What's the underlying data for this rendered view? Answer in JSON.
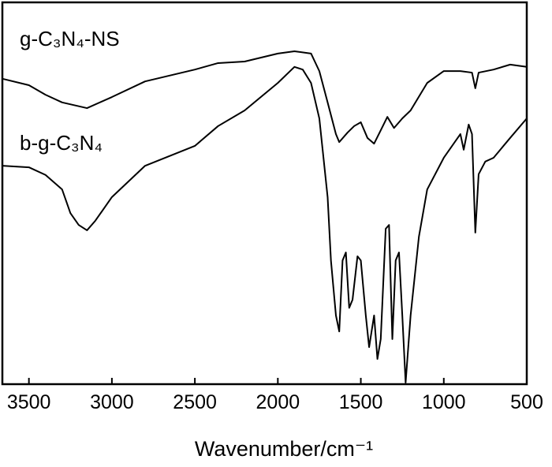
{
  "chart_data": {
    "type": "line",
    "xlabel": "Wavenumber/cm⁻¹",
    "xlim": [
      3660,
      500
    ],
    "xticks": [
      3500,
      3000,
      2500,
      2000,
      1500,
      1000,
      500
    ],
    "ylim": [
      0,
      100
    ],
    "series": [
      {
        "name": "g-C₃N₄-NS",
        "color": "#000000",
        "x": [
          3660,
          3500,
          3400,
          3300,
          3150,
          3000,
          2800,
          2500,
          2360,
          2200,
          2000,
          1900,
          1800,
          1750,
          1700,
          1650,
          1630,
          1580,
          1540,
          1500,
          1460,
          1420,
          1380,
          1340,
          1300,
          1250,
          1200,
          1100,
          1000,
          900,
          830,
          810,
          790,
          700,
          600,
          500
        ],
        "values": [
          80.0,
          78.3,
          75.8,
          73.8,
          72.3,
          75.2,
          79.3,
          82.4,
          84.1,
          84.5,
          86.6,
          87.2,
          86.6,
          82.0,
          73.8,
          65.5,
          63.4,
          65.9,
          67.6,
          68.6,
          64.5,
          63.0,
          66.5,
          70.0,
          67.1,
          69.6,
          71.7,
          78.9,
          82.0,
          82.0,
          81.6,
          77.5,
          81.6,
          82.4,
          83.7,
          83.1
        ]
      },
      {
        "name": "b-g-C₃N₄",
        "color": "#000000",
        "x": [
          3660,
          3500,
          3400,
          3300,
          3250,
          3200,
          3150,
          3100,
          3000,
          2800,
          2500,
          2360,
          2200,
          2000,
          1900,
          1850,
          1800,
          1750,
          1700,
          1680,
          1650,
          1630,
          1610,
          1590,
          1570,
          1550,
          1520,
          1500,
          1470,
          1450,
          1420,
          1400,
          1380,
          1350,
          1330,
          1310,
          1290,
          1270,
          1250,
          1230,
          1200,
          1150,
          1100,
          1000,
          900,
          880,
          850,
          830,
          810,
          790,
          750,
          700,
          600,
          500
        ],
        "values": [
          57.2,
          56.8,
          54.8,
          51.0,
          44.8,
          41.7,
          40.3,
          42.8,
          49.0,
          57.2,
          62.4,
          67.6,
          71.7,
          78.9,
          83.1,
          82.4,
          78.9,
          69.6,
          49.0,
          32.4,
          18.0,
          13.8,
          32.4,
          34.5,
          20.0,
          22.1,
          33.5,
          32.4,
          18.0,
          9.7,
          18.0,
          6.6,
          11.8,
          40.7,
          41.7,
          11.8,
          32.4,
          34.5,
          18.0,
          0.4,
          18.0,
          38.6,
          51.0,
          59.3,
          65.5,
          61.4,
          68.0,
          65.5,
          39.7,
          55.0,
          58.3,
          59.3,
          64.5,
          69.6
        ]
      }
    ]
  }
}
